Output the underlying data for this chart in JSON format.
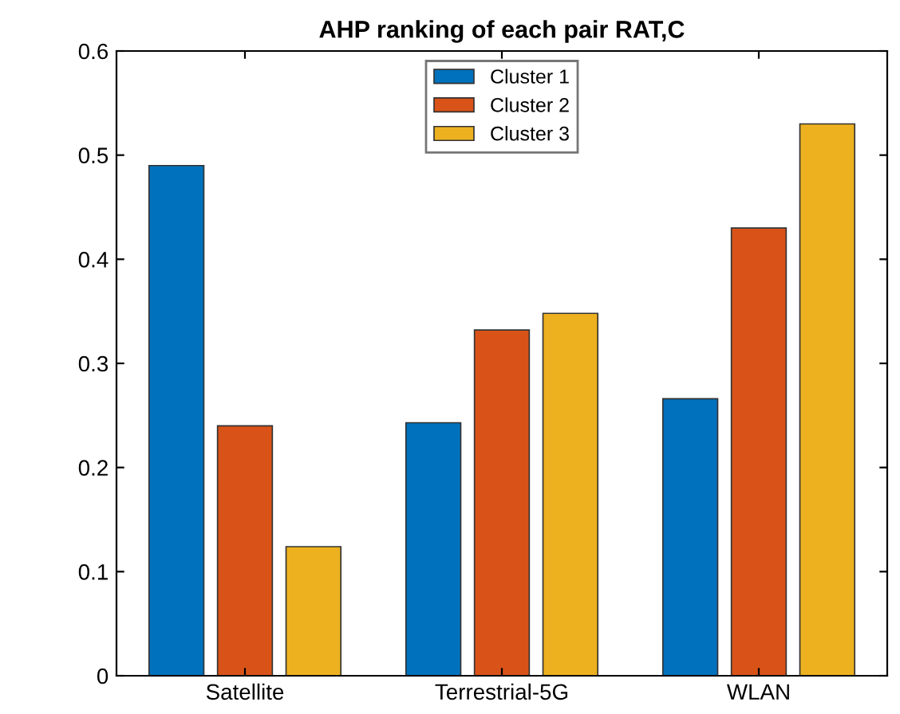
{
  "chart_data": {
    "type": "bar",
    "title": "AHP ranking of each pair RAT,C",
    "categories": [
      "Satellite",
      "Terrestrial-5G",
      "WLAN"
    ],
    "series": [
      {
        "name": "Cluster 1",
        "color": "#0072bd",
        "values": [
          0.49,
          0.243,
          0.266
        ]
      },
      {
        "name": "Cluster 2",
        "color": "#d95319",
        "values": [
          0.24,
          0.332,
          0.43
        ]
      },
      {
        "name": "Cluster 3",
        "color": "#edb120",
        "values": [
          0.124,
          0.348,
          0.53
        ]
      }
    ],
    "ylim": [
      0,
      0.6
    ],
    "yticks": [
      0,
      0.1,
      0.2,
      0.3,
      0.4,
      0.5,
      0.6
    ],
    "grid": false,
    "legend": "top"
  }
}
